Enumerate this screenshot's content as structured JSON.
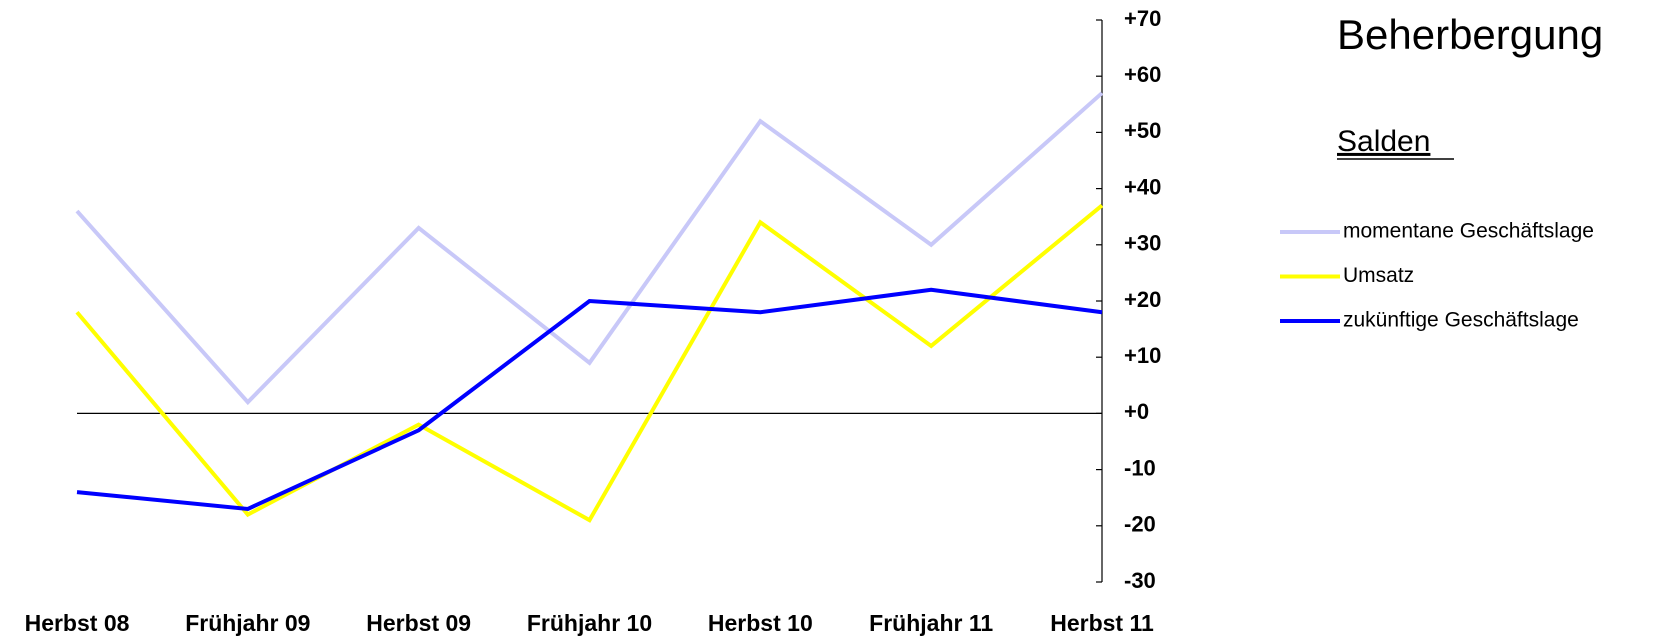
{
  "chart_data": {
    "type": "line",
    "title": "Beherbergung",
    "subtitle": "Salden",
    "categories": [
      "Herbst 08",
      "Frühjahr 09",
      "Herbst 09",
      "Frühjahr 10",
      "Herbst 10",
      "Frühjahr 11",
      "Herbst 11"
    ],
    "series": [
      {
        "name": "momentane Geschäftslage",
        "color": "#c8c8f8",
        "values": [
          36,
          2,
          33,
          9,
          52,
          30,
          57
        ]
      },
      {
        "name": "Umsatz",
        "color": "#ffff00",
        "values": [
          18,
          -18,
          -2,
          -19,
          34,
          12,
          37
        ]
      },
      {
        "name": "zukünftige Geschäftslage",
        "color": "#0000ff",
        "values": [
          -14,
          -17,
          -3,
          20,
          18,
          22,
          18
        ]
      }
    ],
    "ylim": [
      -30,
      70
    ],
    "yticks": [
      {
        "value": 70,
        "label": "+70"
      },
      {
        "value": 60,
        "label": "+60"
      },
      {
        "value": 50,
        "label": "+50"
      },
      {
        "value": 40,
        "label": "+40"
      },
      {
        "value": 30,
        "label": "+30"
      },
      {
        "value": 20,
        "label": "+20"
      },
      {
        "value": 10,
        "label": "+10"
      },
      {
        "value": 0,
        "label": "+0"
      },
      {
        "value": -10,
        "label": "-10"
      },
      {
        "value": -20,
        "label": "-20"
      },
      {
        "value": -30,
        "label": "-30"
      }
    ],
    "negative_tick_color": "#ff0000",
    "y_axis_side": "right",
    "legend": "right"
  }
}
